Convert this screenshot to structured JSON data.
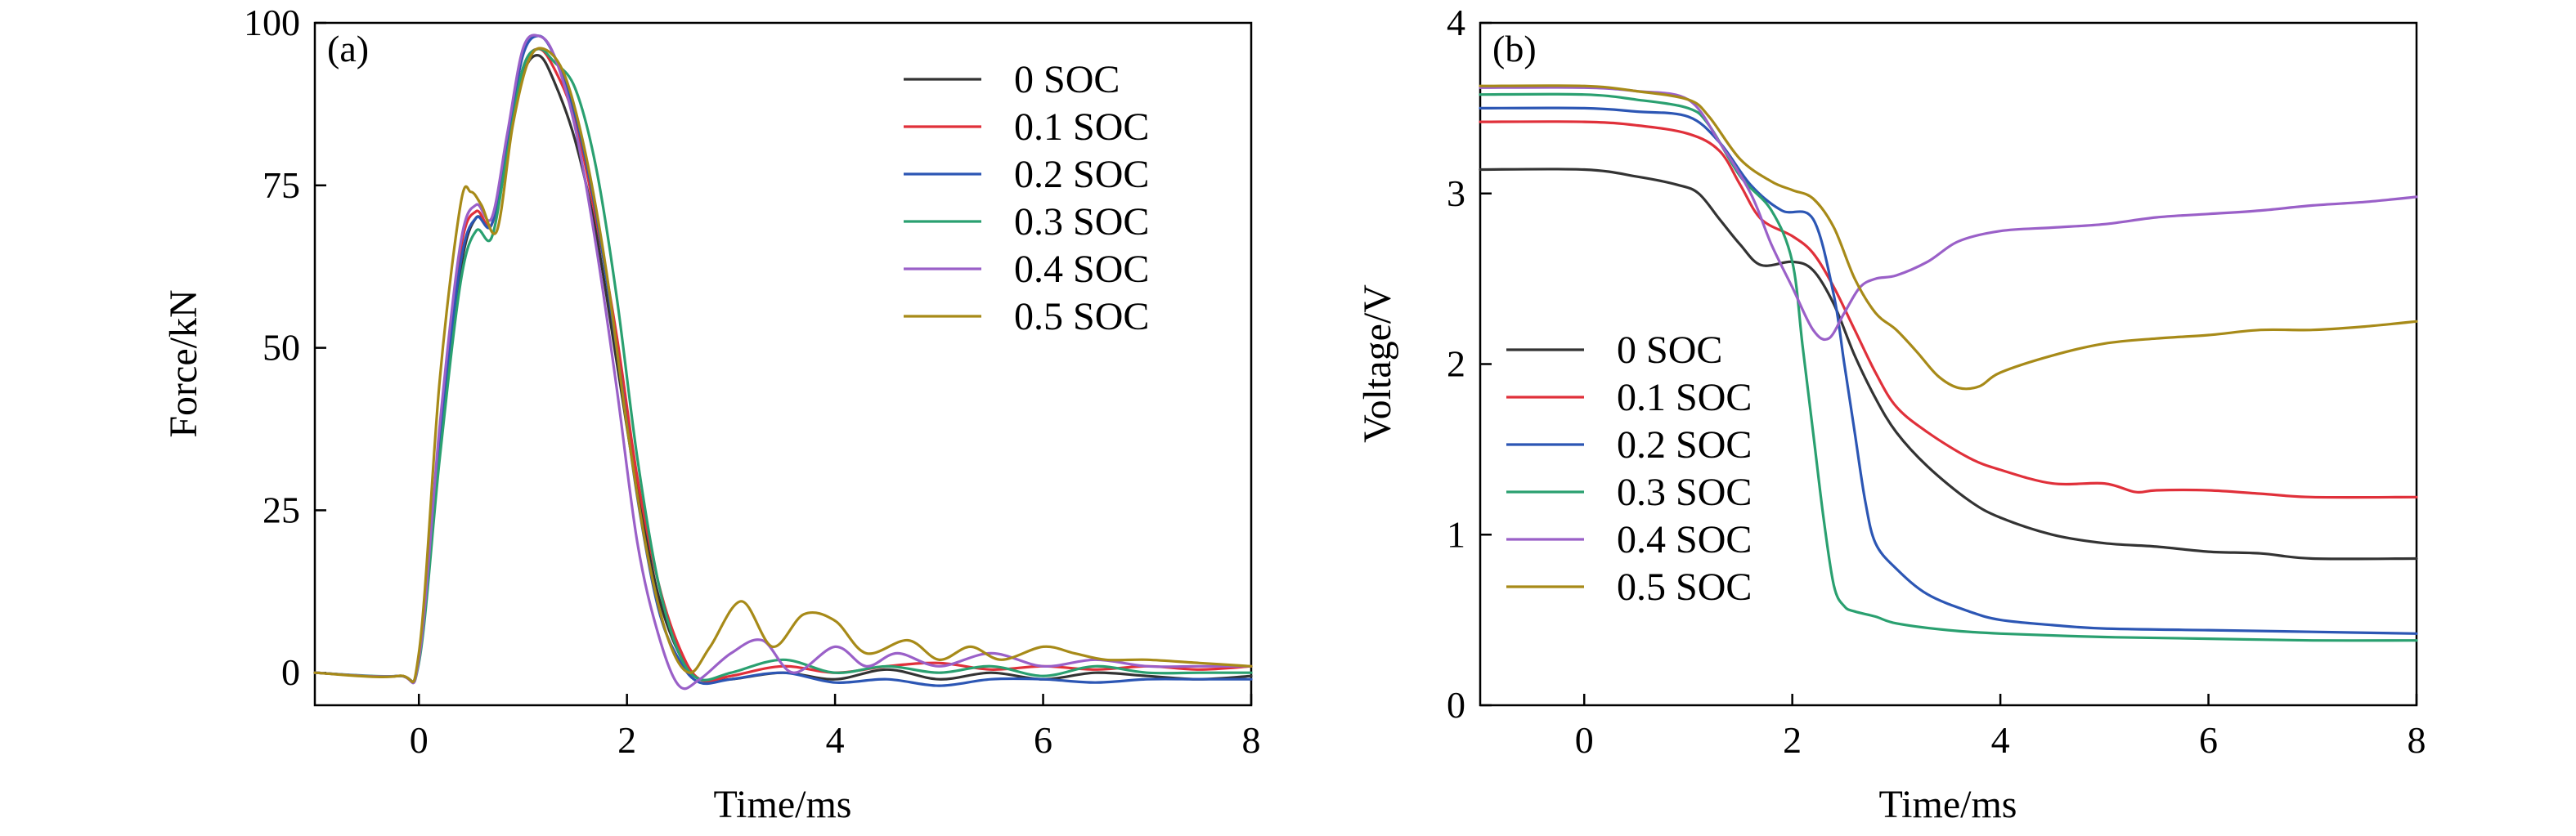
{
  "chart_data": [
    {
      "type": "line",
      "panel_label": "(a)",
      "xlabel": "Time/ms",
      "ylabel": "Force/kN",
      "xlim": [
        -1,
        8
      ],
      "ylim": [
        -5,
        100
      ],
      "xticks": [
        0,
        2,
        4,
        6,
        8
      ],
      "yticks": [
        0,
        25,
        50,
        75,
        100
      ],
      "grid": false,
      "legend_position": "top-right",
      "series": [
        {
          "name": "0 SOC",
          "color": "#333333",
          "x": [
            -1,
            -0.2,
            0,
            0.2,
            0.4,
            0.55,
            0.7,
            0.85,
            1.0,
            1.15,
            1.3,
            1.5,
            1.7,
            1.9,
            2.1,
            2.3,
            2.5,
            2.7,
            3.0,
            3.5,
            4.0,
            4.5,
            5.0,
            5.5,
            6.0,
            6.5,
            7.0,
            7.5,
            8.0
          ],
          "y": [
            0,
            -0.5,
            2,
            35,
            62,
            70,
            69,
            80,
            92,
            95,
            91,
            82,
            68,
            48,
            28,
            12,
            3,
            -1,
            -1,
            0,
            -1,
            0.5,
            -1,
            0,
            -1,
            0,
            -0.5,
            -1,
            -0.5
          ]
        },
        {
          "name": "0.1 SOC",
          "color": "#e0303a",
          "x": [
            -1,
            -0.2,
            0,
            0.2,
            0.4,
            0.55,
            0.7,
            0.85,
            1.0,
            1.15,
            1.3,
            1.5,
            1.7,
            1.9,
            2.1,
            2.3,
            2.5,
            2.7,
            3.0,
            3.5,
            4.0,
            4.5,
            5.0,
            5.5,
            6.0,
            6.5,
            7.0,
            7.5,
            8.0
          ],
          "y": [
            0,
            -0.5,
            2,
            37,
            65,
            71,
            69,
            81,
            93,
            96,
            93,
            85,
            70,
            52,
            30,
            14,
            4,
            -1,
            -0.5,
            1,
            0,
            1,
            1.5,
            0.5,
            1,
            0.5,
            1,
            0.5,
            1
          ]
        },
        {
          "name": "0.2 SOC",
          "color": "#2c56b4",
          "x": [
            -1,
            -0.2,
            0,
            0.2,
            0.4,
            0.55,
            0.7,
            0.85,
            1.0,
            1.15,
            1.3,
            1.5,
            1.7,
            1.9,
            2.1,
            2.3,
            2.5,
            2.7,
            3.0,
            3.5,
            4.0,
            4.5,
            5.0,
            5.5,
            6.0,
            6.5,
            7.0,
            7.5,
            8.0
          ],
          "y": [
            0,
            -0.5,
            2,
            36,
            63,
            70,
            69,
            82,
            95,
            98,
            95,
            86,
            71,
            50,
            27,
            10,
            2,
            -1.5,
            -1,
            0,
            -1.5,
            -1,
            -2,
            -1,
            -1,
            -1.5,
            -1,
            -1,
            -1
          ]
        },
        {
          "name": "0.3 SOC",
          "color": "#2aa070",
          "x": [
            -1,
            -0.2,
            0,
            0.2,
            0.4,
            0.55,
            0.7,
            0.85,
            1.0,
            1.15,
            1.3,
            1.5,
            1.7,
            1.9,
            2.1,
            2.3,
            2.5,
            2.7,
            3.0,
            3.5,
            4.0,
            4.5,
            5.0,
            5.5,
            6.0,
            6.5,
            7.0,
            7.5,
            8.0
          ],
          "y": [
            0,
            -0.5,
            1.5,
            33,
            60,
            68,
            67,
            80,
            93,
            96,
            94,
            90,
            78,
            58,
            33,
            14,
            3,
            -1,
            0,
            2,
            0,
            1,
            0,
            1,
            -0.5,
            1,
            0,
            0,
            0
          ]
        },
        {
          "name": "0.4 SOC",
          "color": "#9a60c8",
          "x": [
            -1,
            -0.2,
            0,
            0.2,
            0.4,
            0.55,
            0.7,
            0.85,
            1.0,
            1.15,
            1.3,
            1.5,
            1.7,
            1.9,
            2.1,
            2.3,
            2.5,
            2.7,
            3.0,
            3.3,
            3.6,
            4.0,
            4.3,
            4.6,
            5.0,
            5.5,
            6.0,
            6.5,
            7.0,
            7.5,
            8.0
          ],
          "y": [
            0,
            -0.5,
            2,
            38,
            66,
            72,
            70,
            83,
            96,
            98,
            95,
            84,
            66,
            44,
            20,
            6,
            -2,
            -1,
            3,
            5,
            0,
            4,
            1,
            3,
            1,
            3,
            1,
            2,
            1,
            1,
            1
          ]
        },
        {
          "name": "0.5 SOC",
          "color": "#a78a18",
          "x": [
            -1,
            -0.2,
            0,
            0.2,
            0.4,
            0.5,
            0.6,
            0.75,
            0.9,
            1.05,
            1.2,
            1.4,
            1.6,
            1.8,
            2.0,
            2.2,
            2.4,
            2.6,
            2.8,
            3.1,
            3.4,
            3.7,
            4.0,
            4.3,
            4.7,
            5.0,
            5.3,
            5.6,
            6.0,
            6.3,
            6.6,
            7.0,
            7.5,
            8.0
          ],
          "y": [
            0,
            -0.5,
            3,
            45,
            72,
            74,
            72,
            68,
            84,
            94,
            96,
            92,
            80,
            62,
            38,
            18,
            5,
            0,
            4,
            11,
            4,
            9,
            8,
            3,
            5,
            2,
            4,
            2,
            4,
            3,
            2,
            2,
            1.5,
            1
          ]
        }
      ]
    },
    {
      "type": "line",
      "panel_label": "(b)",
      "xlabel": "Time/ms",
      "ylabel": "Voltage/V",
      "xlim": [
        -1,
        8
      ],
      "ylim": [
        0,
        4
      ],
      "xticks": [
        0,
        2,
        4,
        6,
        8
      ],
      "yticks": [
        0,
        1,
        2,
        3,
        4
      ],
      "grid": false,
      "legend_position": "center-left",
      "series": [
        {
          "name": "0 SOC",
          "color": "#333333",
          "x": [
            -1,
            0,
            0.5,
            0.9,
            1.1,
            1.3,
            1.5,
            1.7,
            2.0,
            2.2,
            2.4,
            2.6,
            2.8,
            3.0,
            3.3,
            3.7,
            4.0,
            4.5,
            5.0,
            5.5,
            6.0,
            6.5,
            7.0,
            8.0
          ],
          "y": [
            3.14,
            3.14,
            3.1,
            3.05,
            3.0,
            2.85,
            2.7,
            2.58,
            2.6,
            2.55,
            2.35,
            2.05,
            1.8,
            1.6,
            1.4,
            1.2,
            1.1,
            1.0,
            0.95,
            0.93,
            0.9,
            0.89,
            0.86,
            0.86
          ]
        },
        {
          "name": "0.1 SOC",
          "color": "#e0303a",
          "x": [
            -1,
            0,
            0.5,
            1.0,
            1.3,
            1.5,
            1.7,
            2.0,
            2.2,
            2.4,
            2.6,
            2.8,
            3.0,
            3.3,
            3.7,
            4.0,
            4.5,
            5.0,
            5.3,
            5.5,
            6.0,
            6.5,
            7.0,
            8.0
          ],
          "y": [
            3.42,
            3.42,
            3.4,
            3.35,
            3.25,
            3.05,
            2.85,
            2.75,
            2.65,
            2.45,
            2.2,
            1.95,
            1.75,
            1.6,
            1.45,
            1.38,
            1.3,
            1.3,
            1.25,
            1.26,
            1.26,
            1.24,
            1.22,
            1.22
          ]
        },
        {
          "name": "0.2 SOC",
          "color": "#2c56b4",
          "x": [
            -1,
            0,
            0.5,
            1.0,
            1.3,
            1.6,
            1.9,
            2.2,
            2.4,
            2.5,
            2.6,
            2.7,
            2.8,
            3.0,
            3.3,
            3.7,
            4.0,
            4.5,
            5.0,
            6.0,
            7.0,
            8.0
          ],
          "y": [
            3.5,
            3.5,
            3.48,
            3.45,
            3.3,
            3.05,
            2.9,
            2.85,
            2.4,
            2.0,
            1.6,
            1.2,
            0.95,
            0.8,
            0.65,
            0.55,
            0.5,
            0.47,
            0.45,
            0.44,
            0.43,
            0.42
          ]
        },
        {
          "name": "0.3 SOC",
          "color": "#2aa070",
          "x": [
            -1,
            0,
            0.5,
            1.0,
            1.2,
            1.5,
            1.8,
            2.0,
            2.1,
            2.2,
            2.3,
            2.4,
            2.5,
            2.6,
            2.8,
            3.0,
            3.5,
            4.0,
            5.0,
            6.0,
            7.0,
            8.0
          ],
          "y": [
            3.58,
            3.58,
            3.55,
            3.5,
            3.4,
            3.1,
            2.9,
            2.6,
            2.1,
            1.6,
            1.1,
            0.7,
            0.58,
            0.55,
            0.52,
            0.48,
            0.44,
            0.42,
            0.4,
            0.39,
            0.38,
            0.38
          ]
        },
        {
          "name": "0.4 SOC",
          "color": "#9a60c8",
          "x": [
            -1,
            0,
            0.5,
            1.0,
            1.3,
            1.6,
            1.8,
            2.0,
            2.2,
            2.35,
            2.5,
            2.65,
            2.8,
            3.0,
            3.3,
            3.6,
            4.0,
            4.5,
            5.0,
            5.5,
            6.0,
            6.5,
            7.0,
            7.5,
            8.0
          ],
          "y": [
            3.62,
            3.62,
            3.6,
            3.55,
            3.3,
            3.0,
            2.7,
            2.45,
            2.2,
            2.15,
            2.3,
            2.45,
            2.5,
            2.52,
            2.6,
            2.72,
            2.78,
            2.8,
            2.82,
            2.86,
            2.88,
            2.9,
            2.93,
            2.95,
            2.98
          ]
        },
        {
          "name": "0.5 SOC",
          "color": "#a78a18",
          "x": [
            -1,
            0,
            0.5,
            1.0,
            1.2,
            1.5,
            1.8,
            2.0,
            2.2,
            2.4,
            2.6,
            2.8,
            3.0,
            3.2,
            3.4,
            3.6,
            3.8,
            4.0,
            4.5,
            5.0,
            5.5,
            6.0,
            6.5,
            7.0,
            7.5,
            8.0
          ],
          "y": [
            3.63,
            3.63,
            3.6,
            3.55,
            3.45,
            3.2,
            3.07,
            3.02,
            2.97,
            2.8,
            2.5,
            2.3,
            2.2,
            2.07,
            1.93,
            1.86,
            1.87,
            1.95,
            2.05,
            2.12,
            2.15,
            2.17,
            2.2,
            2.2,
            2.22,
            2.25
          ]
        }
      ]
    }
  ]
}
